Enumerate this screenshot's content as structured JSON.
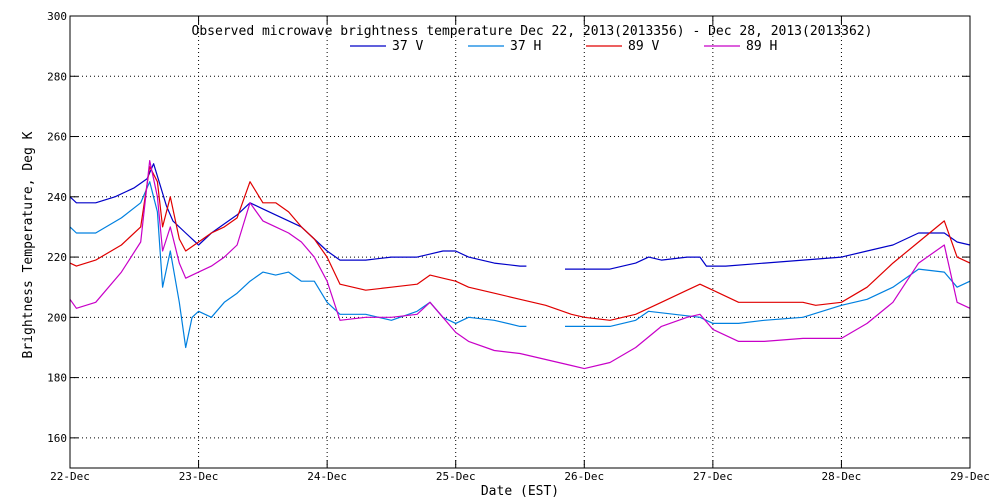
{
  "chart_data": {
    "type": "line",
    "title": "Observed microwave brightness temperature Dec 22, 2013(2013356) - Dec 28, 2013(2013362)",
    "xlabel": "Date (EST)",
    "ylabel": "Brightness Temperature, Deg K",
    "xlim": [
      0,
      7
    ],
    "ylim": [
      150,
      300
    ],
    "grid": true,
    "legend_position": "top",
    "x_ticks": [
      {
        "value": 0,
        "label": "22-Dec"
      },
      {
        "value": 1,
        "label": "23-Dec"
      },
      {
        "value": 2,
        "label": "24-Dec"
      },
      {
        "value": 3,
        "label": "25-Dec"
      },
      {
        "value": 4,
        "label": "26-Dec"
      },
      {
        "value": 5,
        "label": "27-Dec"
      },
      {
        "value": 6,
        "label": "28-Dec"
      },
      {
        "value": 7,
        "label": "29-Dec"
      }
    ],
    "y_ticks": [
      {
        "value": 160,
        "label": "160"
      },
      {
        "value": 180,
        "label": "180"
      },
      {
        "value": 200,
        "label": "200"
      },
      {
        "value": 220,
        "label": "220"
      },
      {
        "value": 240,
        "label": "240"
      },
      {
        "value": 260,
        "label": "260"
      },
      {
        "value": 280,
        "label": "280"
      },
      {
        "value": 300,
        "label": "300"
      }
    ],
    "series": [
      {
        "name": "37 V",
        "color": "#0000c8",
        "segments": [
          [
            [
              0,
              240
            ],
            [
              0.05,
              238
            ],
            [
              0.2,
              238
            ],
            [
              0.35,
              240
            ],
            [
              0.5,
              243
            ],
            [
              0.6,
              246
            ],
            [
              0.65,
              251
            ],
            [
              0.7,
              244
            ],
            [
              0.75,
              237
            ],
            [
              0.8,
              232
            ],
            [
              0.9,
              228
            ],
            [
              1.0,
              224
            ],
            [
              1.1,
              228
            ],
            [
              1.2,
              231
            ],
            [
              1.3,
              234
            ],
            [
              1.4,
              238
            ],
            [
              1.5,
              236
            ],
            [
              1.6,
              234
            ],
            [
              1.7,
              232
            ],
            [
              1.8,
              230
            ],
            [
              1.9,
              226
            ],
            [
              2.0,
              222
            ],
            [
              2.1,
              219
            ],
            [
              2.3,
              219
            ],
            [
              2.5,
              220
            ],
            [
              2.7,
              220
            ],
            [
              2.8,
              221
            ],
            [
              2.9,
              222
            ],
            [
              3.0,
              222
            ],
            [
              3.1,
              220
            ],
            [
              3.3,
              218
            ],
            [
              3.5,
              217
            ],
            [
              3.55,
              217
            ]
          ],
          [
            [
              3.85,
              216
            ],
            [
              4.0,
              216
            ],
            [
              4.2,
              216
            ],
            [
              4.4,
              218
            ],
            [
              4.5,
              220
            ],
            [
              4.6,
              219
            ],
            [
              4.8,
              220
            ],
            [
              4.9,
              220
            ],
            [
              4.95,
              217
            ],
            [
              5.1,
              217
            ],
            [
              5.4,
              218
            ],
            [
              5.7,
              219
            ],
            [
              6.0,
              220
            ],
            [
              6.2,
              222
            ],
            [
              6.4,
              224
            ],
            [
              6.6,
              228
            ],
            [
              6.8,
              228
            ],
            [
              6.9,
              225
            ],
            [
              7.0,
              224
            ]
          ]
        ]
      },
      {
        "name": "37 H",
        "color": "#0080e0",
        "segments": [
          [
            [
              0,
              230
            ],
            [
              0.05,
              228
            ],
            [
              0.2,
              228
            ],
            [
              0.4,
              233
            ],
            [
              0.55,
              238
            ],
            [
              0.62,
              245
            ],
            [
              0.68,
              235
            ],
            [
              0.72,
              210
            ],
            [
              0.78,
              222
            ],
            [
              0.85,
              205
            ],
            [
              0.9,
              190
            ],
            [
              0.95,
              200
            ],
            [
              1.0,
              202
            ],
            [
              1.1,
              200
            ],
            [
              1.2,
              205
            ],
            [
              1.3,
              208
            ],
            [
              1.4,
              212
            ],
            [
              1.5,
              215
            ],
            [
              1.6,
              214
            ],
            [
              1.7,
              215
            ],
            [
              1.8,
              212
            ],
            [
              1.9,
              212
            ],
            [
              2.0,
              205
            ],
            [
              2.1,
              201
            ],
            [
              2.3,
              201
            ],
            [
              2.5,
              199
            ],
            [
              2.7,
              202
            ],
            [
              2.8,
              205
            ],
            [
              2.9,
              200
            ],
            [
              3.0,
              198
            ],
            [
              3.1,
              200
            ],
            [
              3.3,
              199
            ],
            [
              3.5,
              197
            ],
            [
              3.55,
              197
            ]
          ],
          [
            [
              3.85,
              197
            ],
            [
              4.0,
              197
            ],
            [
              4.2,
              197
            ],
            [
              4.4,
              199
            ],
            [
              4.5,
              202
            ],
            [
              4.7,
              201
            ],
            [
              4.9,
              200
            ],
            [
              5.0,
              198
            ],
            [
              5.2,
              198
            ],
            [
              5.4,
              199
            ],
            [
              5.7,
              200
            ],
            [
              6.0,
              204
            ],
            [
              6.2,
              206
            ],
            [
              6.4,
              210
            ],
            [
              6.6,
              216
            ],
            [
              6.8,
              215
            ],
            [
              6.9,
              210
            ],
            [
              7.0,
              212
            ]
          ]
        ]
      },
      {
        "name": "89 V",
        "color": "#e00000",
        "segments": [
          [
            [
              0,
              218
            ],
            [
              0.05,
              217
            ],
            [
              0.2,
              219
            ],
            [
              0.4,
              224
            ],
            [
              0.55,
              230
            ],
            [
              0.62,
              250
            ],
            [
              0.68,
              245
            ],
            [
              0.72,
              230
            ],
            [
              0.78,
              240
            ],
            [
              0.85,
              226
            ],
            [
              0.9,
              222
            ],
            [
              1.0,
              225
            ],
            [
              1.1,
              228
            ],
            [
              1.2,
              230
            ],
            [
              1.3,
              233
            ],
            [
              1.4,
              245
            ],
            [
              1.5,
              238
            ],
            [
              1.6,
              238
            ],
            [
              1.7,
              235
            ],
            [
              1.8,
              230
            ],
            [
              1.9,
              226
            ],
            [
              2.0,
              220
            ],
            [
              2.1,
              211
            ],
            [
              2.3,
              209
            ],
            [
              2.5,
              210
            ],
            [
              2.7,
              211
            ],
            [
              2.8,
              214
            ],
            [
              2.9,
              213
            ],
            [
              3.0,
              212
            ],
            [
              3.1,
              210
            ],
            [
              3.3,
              208
            ],
            [
              3.5,
              206
            ],
            [
              3.7,
              204
            ],
            [
              3.9,
              201
            ],
            [
              4.0,
              200
            ],
            [
              4.2,
              199
            ],
            [
              4.4,
              201
            ],
            [
              4.6,
              205
            ],
            [
              4.8,
              209
            ],
            [
              4.9,
              211
            ],
            [
              5.0,
              209
            ],
            [
              5.2,
              205
            ],
            [
              5.4,
              205
            ],
            [
              5.7,
              205
            ],
            [
              5.8,
              204
            ],
            [
              6.0,
              205
            ],
            [
              6.2,
              210
            ],
            [
              6.4,
              218
            ],
            [
              6.6,
              225
            ],
            [
              6.8,
              232
            ],
            [
              6.9,
              220
            ],
            [
              7.0,
              218
            ]
          ]
        ]
      },
      {
        "name": "89 H",
        "color": "#c800c8",
        "segments": [
          [
            [
              0,
              206
            ],
            [
              0.05,
              203
            ],
            [
              0.2,
              205
            ],
            [
              0.4,
              215
            ],
            [
              0.55,
              225
            ],
            [
              0.62,
              252
            ],
            [
              0.68,
              240
            ],
            [
              0.72,
              222
            ],
            [
              0.78,
              230
            ],
            [
              0.85,
              218
            ],
            [
              0.9,
              213
            ],
            [
              1.0,
              215
            ],
            [
              1.1,
              217
            ],
            [
              1.2,
              220
            ],
            [
              1.3,
              224
            ],
            [
              1.4,
              238
            ],
            [
              1.5,
              232
            ],
            [
              1.6,
              230
            ],
            [
              1.7,
              228
            ],
            [
              1.8,
              225
            ],
            [
              1.9,
              220
            ],
            [
              2.0,
              212
            ],
            [
              2.1,
              199
            ],
            [
              2.3,
              200
            ],
            [
              2.5,
              200
            ],
            [
              2.7,
              201
            ],
            [
              2.8,
              205
            ],
            [
              2.9,
              200
            ],
            [
              3.0,
              195
            ],
            [
              3.1,
              192
            ],
            [
              3.3,
              189
            ],
            [
              3.5,
              188
            ],
            [
              3.7,
              186
            ],
            [
              3.9,
              184
            ],
            [
              4.0,
              183
            ],
            [
              4.2,
              185
            ],
            [
              4.4,
              190
            ],
            [
              4.6,
              197
            ],
            [
              4.8,
              200
            ],
            [
              4.9,
              201
            ],
            [
              5.0,
              196
            ],
            [
              5.2,
              192
            ],
            [
              5.4,
              192
            ],
            [
              5.7,
              193
            ],
            [
              6.0,
              193
            ],
            [
              6.2,
              198
            ],
            [
              6.4,
              205
            ],
            [
              6.6,
              218
            ],
            [
              6.8,
              224
            ],
            [
              6.9,
              205
            ],
            [
              7.0,
              203
            ]
          ]
        ]
      }
    ]
  }
}
